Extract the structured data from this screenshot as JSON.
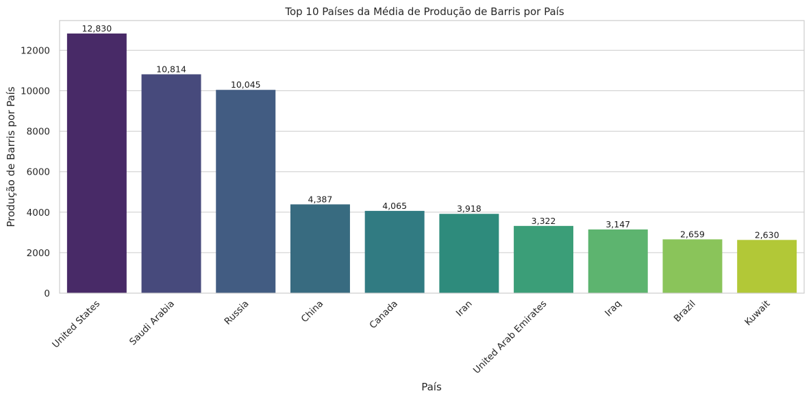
{
  "chart_data": {
    "type": "bar",
    "title": "Top 10 Países da Média de Produção de Barris por País",
    "xlabel": "País",
    "ylabel": "Produção de Barris por País",
    "categories": [
      "United States",
      "Saudi Arabia",
      "Russia",
      "China",
      "Canada",
      "Iran",
      "United Arab Emirates",
      "Iraq",
      "Brazil",
      "Kuwait"
    ],
    "values": [
      12830,
      10814,
      10045,
      4387,
      4065,
      3918,
      3322,
      3147,
      2659,
      2630
    ],
    "data_labels": [
      "12,830",
      "10,814",
      "10,045",
      "4,387",
      "4,065",
      "3,918",
      "3,322",
      "3,147",
      "2,659",
      "2,630"
    ],
    "colors": [
      "#482a67",
      "#474a7c",
      "#425c82",
      "#386b80",
      "#317b82",
      "#2e8b7c",
      "#3b9e78",
      "#5db46f",
      "#8ac45a",
      "#b2c837"
    ],
    "yticks": [
      0,
      2000,
      4000,
      6000,
      8000,
      10000,
      12000
    ],
    "ytick_labels": [
      "0",
      "2000",
      "4000",
      "6000",
      "8000",
      "10000",
      "12000"
    ],
    "ylim": [
      0,
      13470
    ],
    "grid": "horizontal",
    "legend": "none"
  }
}
